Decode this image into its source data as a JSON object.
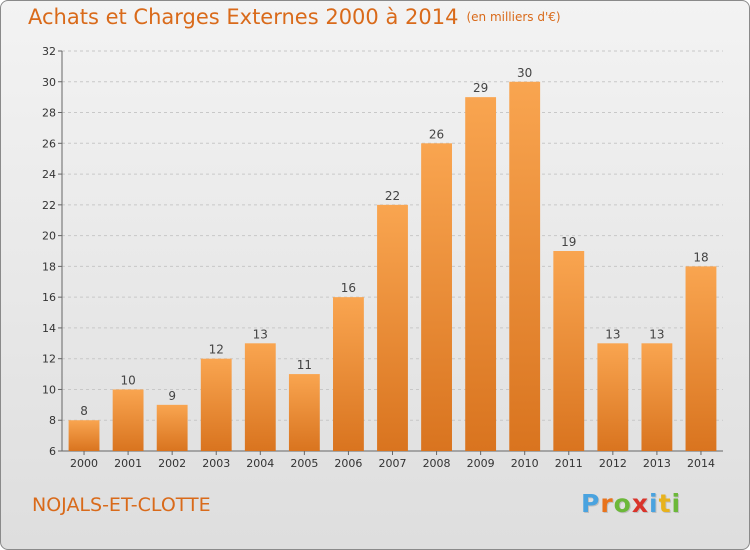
{
  "title": "Achats et Charges Externes 2000 à 2014",
  "title_unit": "(en milliers d'€)",
  "commune": "NOJALS-ET-CLOTTE",
  "logo": {
    "letters": [
      "P",
      "r",
      "o",
      "x",
      "i",
      "t",
      "i"
    ],
    "colors": [
      "#4aa3df",
      "#e8731c",
      "#6cb83a",
      "#d9342b",
      "#4aa3df",
      "#e8b21c",
      "#6cb83a"
    ]
  },
  "colors": {
    "bar_light": "#f9a550",
    "bar_dark": "#d9741f",
    "grid": "#c8c8c8",
    "title": "#d96a1a"
  },
  "chart_data": {
    "type": "bar",
    "categories": [
      "2000",
      "2001",
      "2002",
      "2003",
      "2004",
      "2005",
      "2006",
      "2007",
      "2008",
      "2009",
      "2010",
      "2011",
      "2012",
      "2013",
      "2014"
    ],
    "values": [
      8,
      10,
      9,
      12,
      13,
      11,
      16,
      22,
      26,
      29,
      30,
      19,
      13,
      13,
      18
    ],
    "ylim": [
      6,
      32
    ],
    "yticks": [
      6,
      8,
      10,
      12,
      14,
      16,
      18,
      20,
      22,
      24,
      26,
      28,
      30,
      32
    ],
    "grid": true,
    "data_labels": true
  }
}
